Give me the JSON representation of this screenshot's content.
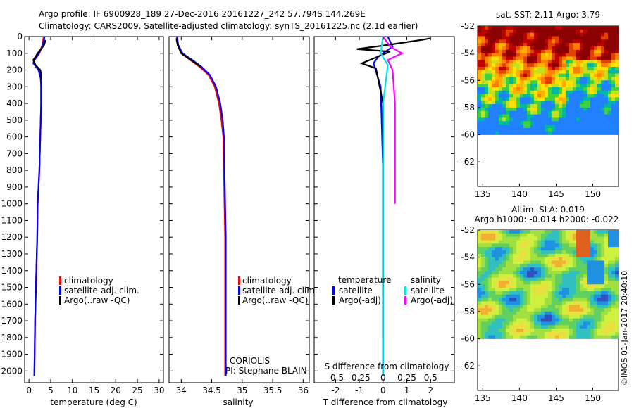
{
  "header": {
    "line1": "Argo profile: IF 6900928_189 27-Dec-2016 20161227_242 57.794S 144.269E",
    "line2": "Climatology: CARS2009. Satellite-adjusted climatology: synTS_20161225.nc (2.1d earlier)"
  },
  "colors": {
    "climatology": "#ff0000",
    "satellite": "#0000ff",
    "argo": "#000000",
    "sal_satellite": "#00e5e5",
    "sal_argo": "#ff00ff"
  },
  "chart_data": [
    {
      "type": "line",
      "xlabel": "temperature (deg C)",
      "ylabel": "",
      "xlim": [
        -1,
        31
      ],
      "ylim": [
        2070,
        0
      ],
      "x_ticks": [
        "0",
        "5",
        "10",
        "15",
        "20",
        "25",
        "30"
      ],
      "y_ticks": [
        "0",
        "100",
        "200",
        "300",
        "400",
        "500",
        "600",
        "700",
        "800",
        "900",
        "1000",
        "1100",
        "1200",
        "1300",
        "1400",
        "1500",
        "1600",
        "1700",
        "1800",
        "1900",
        "2000"
      ],
      "legend": [
        "climatology",
        "satellite-adj. clim.",
        "Argo(..raw -QC)"
      ],
      "legend_position": "middle-right",
      "series": [
        {
          "name": "climatology",
          "color": "#ff0000",
          "x": [
            3.4,
            3.1,
            2.4,
            1.3,
            1.1,
            2.2,
            2.7,
            2.8,
            2.8,
            2.7,
            2.6,
            2.5,
            2.4,
            2.2,
            2.0,
            1.9,
            1.8,
            1.7,
            1.6,
            1.5,
            1.4,
            1.35,
            1.3,
            1.2
          ],
          "y": [
            0,
            50,
            100,
            140,
            160,
            200,
            250,
            300,
            400,
            500,
            600,
            700,
            800,
            900,
            1000,
            1200,
            1300,
            1400,
            1500,
            1600,
            1700,
            1800,
            1900,
            2030
          ]
        },
        {
          "name": "satellite-adj. clim.",
          "color": "#0000ff",
          "x": [
            3.6,
            3.2,
            2.3,
            1.2,
            1.0,
            2.2,
            2.7,
            2.8,
            2.8,
            2.7,
            2.6,
            2.5,
            2.4,
            2.2,
            2.0,
            1.9,
            1.8,
            1.7,
            1.6,
            1.5,
            1.4,
            1.35,
            1.3,
            1.25
          ],
          "y": [
            0,
            50,
            100,
            140,
            160,
            200,
            250,
            300,
            400,
            500,
            600,
            700,
            800,
            900,
            1000,
            1200,
            1300,
            1400,
            1500,
            1600,
            1700,
            1800,
            1900,
            2030
          ]
        },
        {
          "name": "Argo(..raw -QC)",
          "color": "#000000",
          "x": [
            3.8,
            3.5,
            2.0,
            1.0,
            1.5,
            2.6,
            2.8,
            2.8
          ],
          "y": [
            20,
            50,
            100,
            140,
            170,
            200,
            230,
            260
          ]
        }
      ]
    },
    {
      "type": "line",
      "xlabel": "salinity",
      "ylabel": "",
      "xlim": [
        33.8,
        36.1
      ],
      "ylim": [
        2070,
        0
      ],
      "x_ticks": [
        "34",
        "34.5",
        "35",
        "35.5",
        "36"
      ],
      "legend": [
        "climatology",
        "satellite-adj. clim.",
        "Argo(..raw -QC)"
      ],
      "legend_position": "bottom-right",
      "annotation": [
        "CORIOLIS",
        "PI: Stephane BLAIN"
      ],
      "series": [
        {
          "name": "climatology",
          "color": "#ff0000",
          "x": [
            33.93,
            33.95,
            34.0,
            34.15,
            34.3,
            34.45,
            34.55,
            34.62,
            34.66,
            34.69,
            34.7,
            34.71,
            34.72,
            34.72,
            34.72,
            34.72,
            34.72
          ],
          "y": [
            0,
            50,
            100,
            140,
            180,
            230,
            300,
            400,
            500,
            600,
            800,
            1000,
            1200,
            1400,
            1600,
            1800,
            2030
          ]
        },
        {
          "name": "satellite-adj. clim.",
          "color": "#0000ff",
          "x": [
            33.93,
            33.95,
            34.02,
            34.18,
            34.33,
            34.47,
            34.57,
            34.64,
            34.68,
            34.7,
            34.71,
            34.72,
            34.73,
            34.73,
            34.73,
            34.73,
            34.73
          ],
          "y": [
            0,
            50,
            100,
            140,
            180,
            230,
            300,
            400,
            500,
            600,
            800,
            1000,
            1200,
            1400,
            1600,
            1800,
            2030
          ]
        },
        {
          "name": "Argo(..raw -QC)",
          "color": "#000000",
          "x": [
            33.92,
            33.94,
            34.0,
            34.16,
            34.32
          ],
          "y": [
            10,
            50,
            100,
            140,
            180
          ]
        }
      ]
    },
    {
      "type": "line",
      "xlabel": "T difference from climatology",
      "top_label": "S difference from climatology",
      "top_ticks": [
        "-0.5",
        "-0.25",
        "0",
        "0.25",
        "0.5"
      ],
      "xlim": [
        -2.9,
        3.0
      ],
      "ylim": [
        2070,
        0
      ],
      "x_ticks": [
        "-2",
        "-1",
        "0",
        "1",
        "2"
      ],
      "legend_headers": [
        "temperature",
        "salinity"
      ],
      "legend": [
        "satellite",
        "Argo(-adj)",
        "satellite",
        "Argo(-adj)"
      ],
      "legend_position": "bottom",
      "series": [
        {
          "name": "satellite",
          "color": "#0000ff",
          "x": [
            0.2,
            0.4,
            -0.2,
            -0.4,
            -0.1,
            0.0,
            0.0
          ],
          "y": [
            0,
            60,
            120,
            160,
            300,
            800,
            2030
          ]
        },
        {
          "name": "Argo(-adj)",
          "color": "#000000",
          "x": [
            2.0,
            1.6,
            0.2,
            -1.1,
            0.3,
            -0.9,
            -0.3,
            0.0,
            0.0
          ],
          "y": [
            10,
            20,
            50,
            75,
            90,
            160,
            190,
            400,
            1800
          ]
        },
        {
          "name": "satellite",
          "color": "#00e5e5",
          "x": [
            0.0,
            -0.1,
            0.2,
            0.0,
            0.0
          ],
          "y": [
            0,
            100,
            170,
            400,
            2030
          ]
        },
        {
          "name": "Argo(-adj)",
          "color": "#ff00ff",
          "x": [
            0.0,
            0.3,
            0.8,
            0.2,
            0.4,
            0.5,
            0.5
          ],
          "y": [
            0,
            60,
            100,
            140,
            200,
            400,
            1000
          ]
        }
      ]
    },
    {
      "type": "heatmap",
      "title": "sat. SST: 2.11  Argo: 3.79",
      "x_ticks": [
        "135",
        "140",
        "145",
        "150"
      ],
      "y_ticks": [
        "-52",
        "-54",
        "-56",
        "-58",
        "-60",
        "-62"
      ],
      "xlim": [
        134.3,
        153.5
      ],
      "ylim": [
        -63.8,
        -52.0
      ],
      "data_ylim": [
        -60.0,
        -52.0
      ]
    },
    {
      "type": "heatmap",
      "title": "Altim. SLA: 0.019",
      "subtitle": "Argo h1000: -0.014 h2000: -0.022",
      "x_ticks": [
        "135",
        "140",
        "145",
        "150"
      ],
      "y_ticks": [
        "-52",
        "-54",
        "-56",
        "-58",
        "-60",
        "-62"
      ],
      "xlim": [
        134.3,
        153.5
      ],
      "ylim": [
        -63.8,
        -52.0
      ],
      "data_ylim": [
        -60.0,
        -52.0
      ]
    }
  ],
  "footer": {
    "stamp": "©IMOS 01-Jan-2017 20:40:10"
  }
}
